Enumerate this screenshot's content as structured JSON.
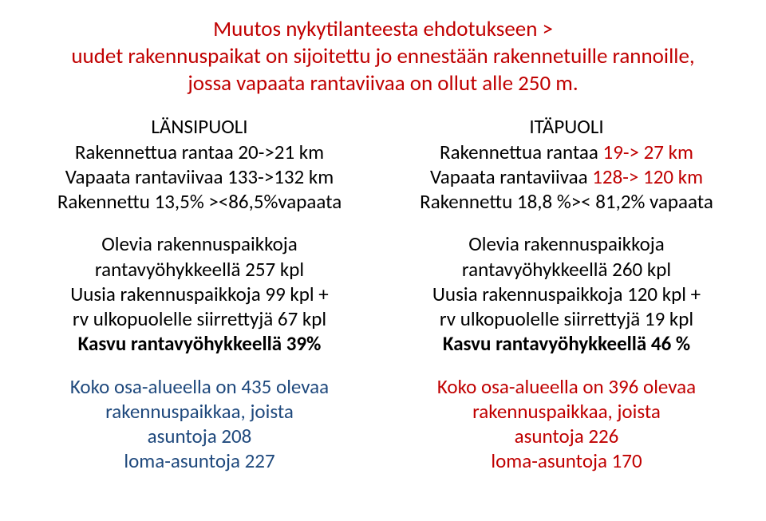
{
  "title": {
    "line1": "Muutos nykytilanteesta ehdotukseen >",
    "line2": "uudet rakennuspaikat on sijoitettu jo ennestään rakennetuille rannoille, jossa vapaata rantaviivaa on ollut alle 250 m."
  },
  "left": {
    "head_label": "LÄNSIPUOLI",
    "r1": "Rakennettua rantaa 20->21 km",
    "r2": "Vapaata rantaviivaa 133->132 km",
    "r3": "Rakennettu 13,5% ><86,5%vapaata",
    "mid1": "Olevia rakennuspaikkoja",
    "mid2": "rantavyöhykkeellä 257 kpl",
    "mid3": "Uusia rakennuspaikkoja 99 kpl +",
    "mid4": "rv ulkopuolelle siirrettyjä 67 kpl",
    "mid5": "Kasvu rantavyöhykkeellä 39%",
    "bot1": "Koko osa-alueella on 435 olevaa",
    "bot2": "rakennuspaikkaa, joista",
    "bot3": "asuntoja 208",
    "bot4": "loma-asuntoja 227"
  },
  "right": {
    "head_label": "ITÄPUOLI",
    "r1_a": "Rakennettua rantaa ",
    "r1_b": "19-> 27 km",
    "r2_a": "Vapaata rantaviivaa ",
    "r2_b": "128-> 120 km",
    "r3": "Rakennettu 18,8 %>< 81,2% vapaata",
    "mid1": "Olevia rakennuspaikkoja",
    "mid2": "rantavyöhykkeellä 260 kpl",
    "mid3": "Uusia rakennuspaikkoja 120 kpl +",
    "mid4": "rv ulkopuolelle siirrettyjä 19 kpl",
    "mid5": "Kasvu rantavyöhykkeellä 46 %",
    "bot1": "Koko osa-alueella on 396 olevaa",
    "bot2": "rakennuspaikkaa, joista",
    "bot3": "asuntoja 226",
    "bot4": "loma-asuntoja 170"
  }
}
